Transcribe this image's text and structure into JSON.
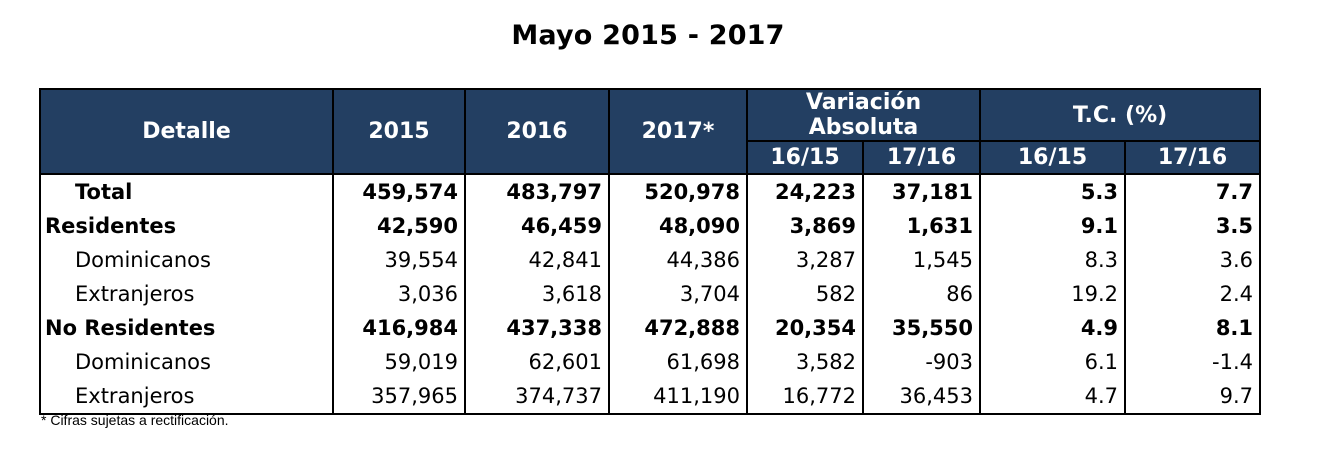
{
  "title": "Mayo  2015 - 2017",
  "table": {
    "headers": {
      "detalle": "Detalle",
      "y2015": "2015",
      "y2016": "2016",
      "y2017": "2017*",
      "var_abs": "Variación Absoluta",
      "tc": "T.C. (%)",
      "sub": [
        "16/15",
        "17/16",
        "16/15",
        "17/16"
      ]
    },
    "rows": [
      {
        "label": "Total",
        "v2015": "459,574",
        "v2016": "483,797",
        "v2017": "520,978",
        "va1615": "24,223",
        "va1716": "37,181",
        "tc1615": "5.3",
        "tc1716": "7.7"
      },
      {
        "label": "Residentes",
        "v2015": "42,590",
        "v2016": "46,459",
        "v2017": "48,090",
        "va1615": "3,869",
        "va1716": "1,631",
        "tc1615": "9.1",
        "tc1716": "3.5"
      },
      {
        "label": "Dominicanos",
        "v2015": "39,554",
        "v2016": "42,841",
        "v2017": "44,386",
        "va1615": "3,287",
        "va1716": "1,545",
        "tc1615": "8.3",
        "tc1716": "3.6"
      },
      {
        "label": "Extranjeros",
        "v2015": "3,036",
        "v2016": "3,618",
        "v2017": "3,704",
        "va1615": "582",
        "va1716": "86",
        "tc1615": "19.2",
        "tc1716": "2.4"
      },
      {
        "label": "No Residentes",
        "v2015": "416,984",
        "v2016": "437,338",
        "v2017": "472,888",
        "va1615": "20,354",
        "va1716": "35,550",
        "tc1615": "4.9",
        "tc1716": "8.1"
      },
      {
        "label": "Dominicanos",
        "v2015": "59,019",
        "v2016": "62,601",
        "v2017": "61,698",
        "va1615": "3,582",
        "va1716": "-903",
        "tc1615": "6.1",
        "tc1716": "-1.4"
      },
      {
        "label": "Extranjeros",
        "v2015": "357,965",
        "v2016": "374,737",
        "v2017": "411,190",
        "va1615": "16,772",
        "va1716": "36,453",
        "tc1615": "4.7",
        "tc1716": "9.7"
      }
    ]
  },
  "footnote": "* Cifras sujetas a rectificación."
}
